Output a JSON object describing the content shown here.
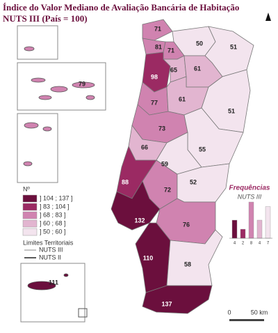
{
  "map": {
    "title": [
      "Índice do Valor Mediano de Avaliação Bancária de Habitação",
      "NUTS III (País = 100)"
    ],
    "legend": {
      "title": "Nº",
      "classes": [
        {
          "label": "] 104 ; 137 ]",
          "color": "#6b0f3d"
        },
        {
          "label": "] 83 ; 104 ]",
          "color": "#9b2a63"
        },
        {
          "label": "] 68 ; 83 ]",
          "color": "#d083b0"
        },
        {
          "label": "] 60 ; 68 ]",
          "color": "#e2b5d0"
        },
        {
          "label": "] 50 ; 60 ]",
          "color": "#f3e4ee"
        }
      ],
      "boundaries_title": "Limites Territoriais",
      "boundaries": [
        "NUTS III",
        "NUTS II"
      ]
    },
    "regions": [
      {
        "value": 71,
        "color": "#d083b0"
      },
      {
        "value": 50,
        "color": "#f3e4ee"
      },
      {
        "value": 51,
        "color": "#f3e4ee"
      },
      {
        "value": 81,
        "color": "#d083b0"
      },
      {
        "value": 71,
        "color": "#d083b0"
      },
      {
        "value": 98,
        "color": "#9b2a63"
      },
      {
        "value": 65,
        "color": "#e2b5d0"
      },
      {
        "value": 61,
        "color": "#e2b5d0"
      },
      {
        "value": 77,
        "color": "#d083b0"
      },
      {
        "value": 61,
        "color": "#e2b5d0"
      },
      {
        "value": 51,
        "color": "#f3e4ee"
      },
      {
        "value": 73,
        "color": "#d083b0"
      },
      {
        "value": 66,
        "color": "#e2b5d0"
      },
      {
        "value": 55,
        "color": "#f3e4ee"
      },
      {
        "value": 59,
        "color": "#f3e4ee"
      },
      {
        "value": 88,
        "color": "#9b2a63"
      },
      {
        "value": 72,
        "color": "#d083b0"
      },
      {
        "value": 52,
        "color": "#f3e4ee"
      },
      {
        "value": 132,
        "color": "#6b0f3d"
      },
      {
        "value": 76,
        "color": "#d083b0"
      },
      {
        "value": 110,
        "color": "#6b0f3d"
      },
      {
        "value": 58,
        "color": "#f3e4ee"
      },
      {
        "value": 137,
        "color": "#6b0f3d"
      },
      {
        "value": 79,
        "color": "#d083b0"
      },
      {
        "value": 111,
        "color": "#6b0f3d"
      }
    ],
    "frequency_chart": {
      "title": "Frequências",
      "subtitle": "NUTS III",
      "values": [
        4,
        2,
        8,
        4,
        7
      ]
    },
    "scale_bar": [
      "0",
      "50 km"
    ]
  }
}
